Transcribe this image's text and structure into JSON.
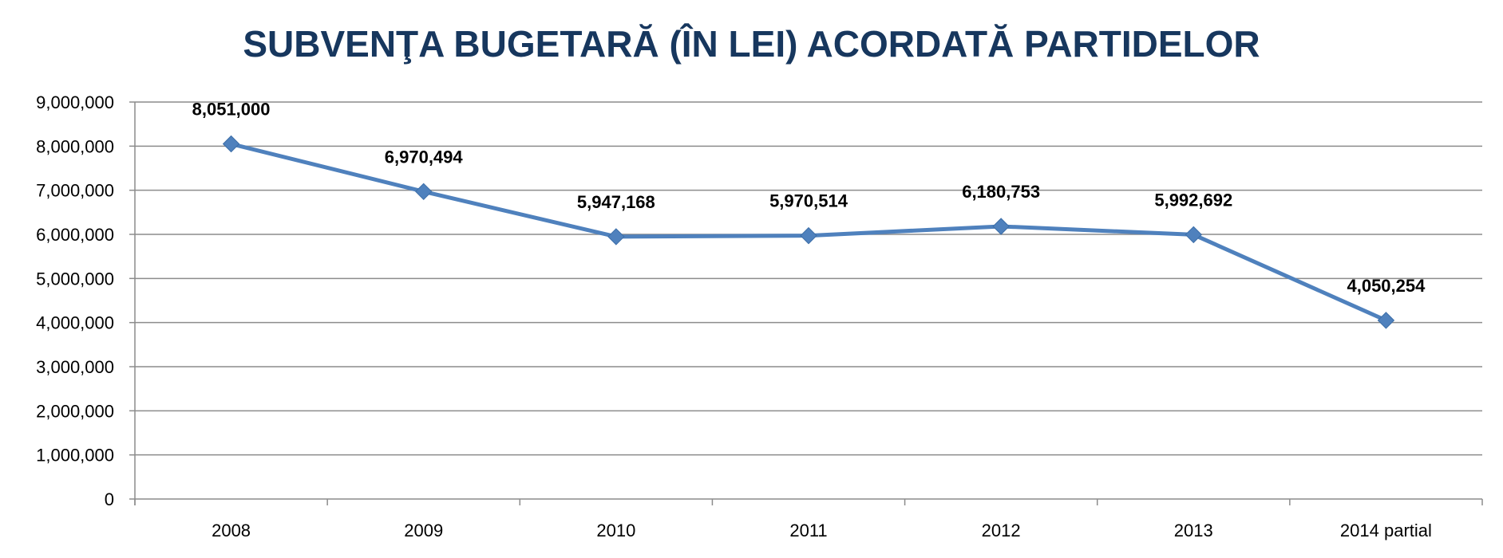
{
  "chart_data": {
    "type": "line",
    "title": "SUBVENŢA BUGETARĂ (ÎN LEI) ACORDATĂ PARTIDELOR",
    "categories": [
      "2008",
      "2009",
      "2010",
      "2011",
      "2012",
      "2013",
      "2014 partial"
    ],
    "series": [
      {
        "values": [
          8051000,
          6970494,
          5947168,
          5970514,
          6180753,
          5992692,
          4050254
        ],
        "labels": [
          "8,051,000",
          "6,970,494",
          "5,947,168",
          "5,970,514",
          "6,180,753",
          "5,992,692",
          "4,050,254"
        ],
        "color": "#4f81bd",
        "marker": "diamond"
      }
    ],
    "yticks": [
      "0",
      "1,000,000",
      "2,000,000",
      "3,000,000",
      "4,000,000",
      "5,000,000",
      "6,000,000",
      "7,000,000",
      "8,000,000",
      "9,000,000"
    ],
    "ylim": [
      0,
      9000000
    ],
    "xlabel": "",
    "ylabel": "",
    "grid": true,
    "legend": "none"
  }
}
